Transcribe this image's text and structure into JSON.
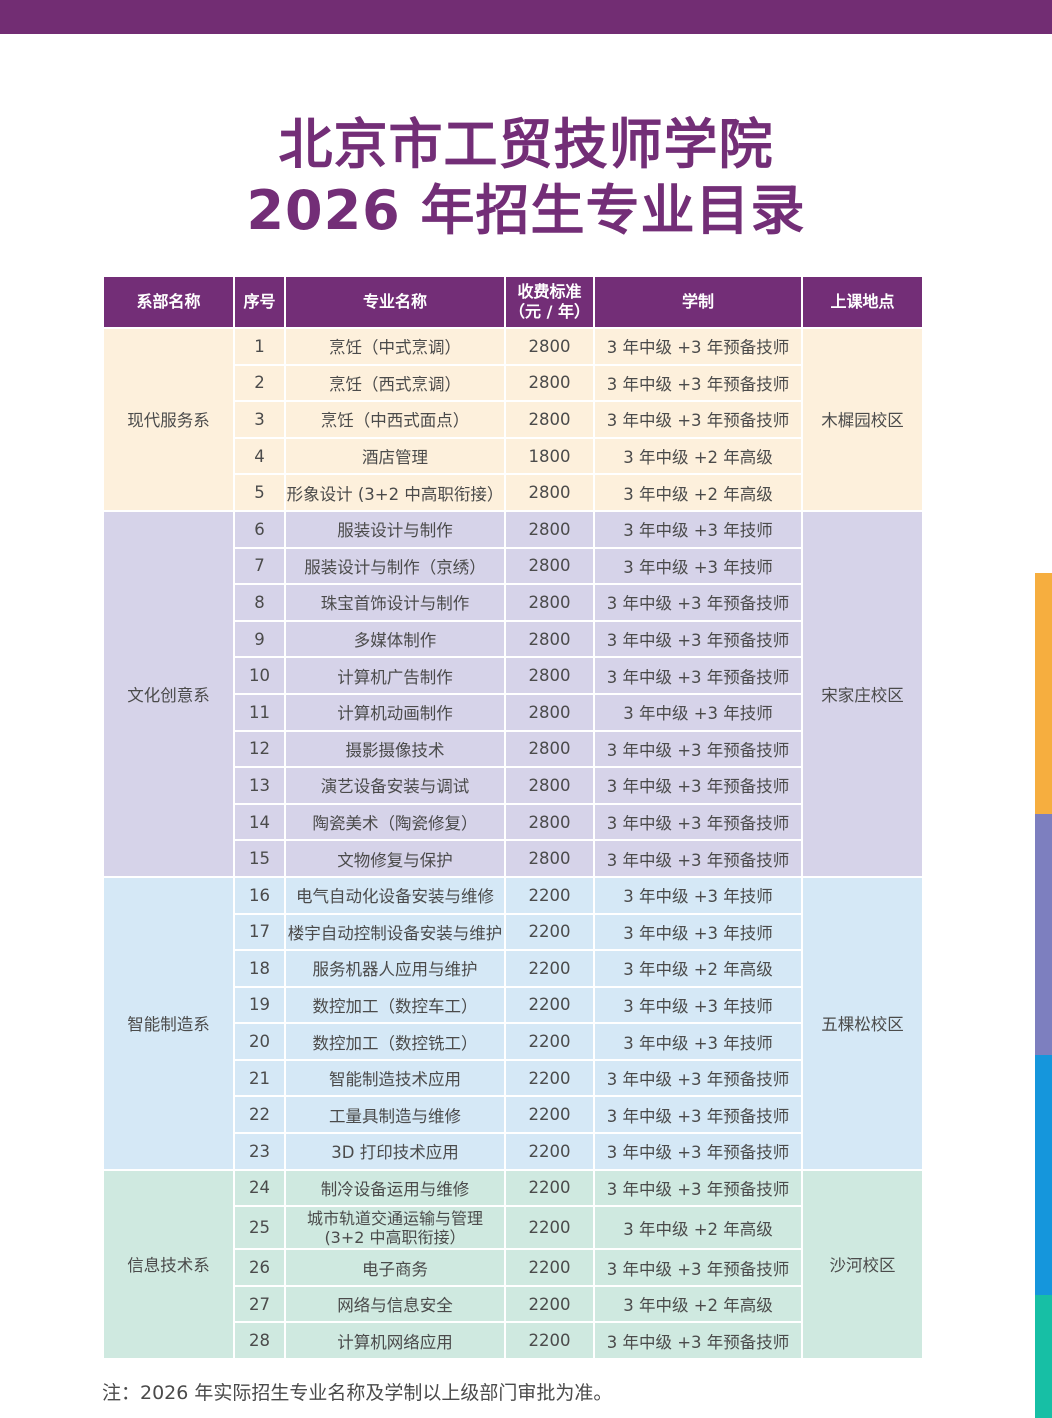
{
  "title": {
    "line1": "北京市工贸技师学院",
    "line2": "2026 年招生专业目录"
  },
  "table": {
    "headers": {
      "department": "系部名称",
      "no": "序号",
      "major": "专业名称",
      "fee_line1": "收费标准",
      "fee_line2": "（元 / 年）",
      "duration": "学制",
      "campus": "上课地点"
    },
    "sections": [
      {
        "department": "现代服务系",
        "campus": "木樨园校区",
        "color": "#fdf0dc",
        "rows": [
          {
            "no": "1",
            "major": "烹饪（中式烹调）",
            "fee": "2800",
            "duration": "3 年中级 +3 年预备技师"
          },
          {
            "no": "2",
            "major": "烹饪（西式烹调）",
            "fee": "2800",
            "duration": "3 年中级 +3 年预备技师"
          },
          {
            "no": "3",
            "major": "烹饪（中西式面点）",
            "fee": "2800",
            "duration": "3 年中级 +3 年预备技师"
          },
          {
            "no": "4",
            "major": "酒店管理",
            "fee": "1800",
            "duration": "3 年中级 +2 年高级"
          },
          {
            "no": "5",
            "major": "形象设计 (3+2 中高职衔接）",
            "fee": "2800",
            "duration": "3 年中级 +2 年高级"
          }
        ]
      },
      {
        "department": "文化创意系",
        "campus": "宋家庄校区",
        "color": "#d6d3e9",
        "rows": [
          {
            "no": "6",
            "major": "服装设计与制作",
            "fee": "2800",
            "duration": "3 年中级 +3 年技师"
          },
          {
            "no": "7",
            "major": "服装设计与制作（京绣）",
            "fee": "2800",
            "duration": "3 年中级 +3 年技师"
          },
          {
            "no": "8",
            "major": "珠宝首饰设计与制作",
            "fee": "2800",
            "duration": "3 年中级 +3 年预备技师"
          },
          {
            "no": "9",
            "major": "多媒体制作",
            "fee": "2800",
            "duration": "3 年中级 +3 年预备技师"
          },
          {
            "no": "10",
            "major": "计算机广告制作",
            "fee": "2800",
            "duration": "3 年中级 +3 年预备技师"
          },
          {
            "no": "11",
            "major": "计算机动画制作",
            "fee": "2800",
            "duration": "3 年中级 +3 年技师"
          },
          {
            "no": "12",
            "major": "摄影摄像技术",
            "fee": "2800",
            "duration": "3 年中级 +3 年预备技师"
          },
          {
            "no": "13",
            "major": "演艺设备安装与调试",
            "fee": "2800",
            "duration": "3 年中级 +3 年预备技师"
          },
          {
            "no": "14",
            "major": "陶瓷美术（陶瓷修复）",
            "fee": "2800",
            "duration": "3 年中级 +3 年预备技师"
          },
          {
            "no": "15",
            "major": "文物修复与保护",
            "fee": "2800",
            "duration": "3 年中级 +3 年预备技师"
          }
        ]
      },
      {
        "department": "智能制造系",
        "campus": "五棵松校区",
        "color": "#d5e8f6",
        "rows": [
          {
            "no": "16",
            "major": "电气自动化设备安装与维修",
            "fee": "2200",
            "duration": "3 年中级 +3 年技师"
          },
          {
            "no": "17",
            "major": "楼宇自动控制设备安装与维护",
            "fee": "2200",
            "duration": "3 年中级 +3 年技师"
          },
          {
            "no": "18",
            "major": "服务机器人应用与维护",
            "fee": "2200",
            "duration": "3 年中级 +2 年高级"
          },
          {
            "no": "19",
            "major": "数控加工（数控车工）",
            "fee": "2200",
            "duration": "3 年中级 +3 年技师"
          },
          {
            "no": "20",
            "major": "数控加工（数控铣工）",
            "fee": "2200",
            "duration": "3 年中级 +3 年技师"
          },
          {
            "no": "21",
            "major": "智能制造技术应用",
            "fee": "2200",
            "duration": "3 年中级 +3 年预备技师"
          },
          {
            "no": "22",
            "major": "工量具制造与维修",
            "fee": "2200",
            "duration": "3 年中级 +3 年预备技师"
          },
          {
            "no": "23",
            "major": "3D 打印技术应用",
            "fee": "2200",
            "duration": "3 年中级 +3 年预备技师"
          }
        ]
      },
      {
        "department": "信息技术系",
        "campus": "沙河校区",
        "color": "#cfe9e0",
        "rows": [
          {
            "no": "24",
            "major": "制冷设备运用与维修",
            "fee": "2200",
            "duration": "3 年中级 +3 年预备技师"
          },
          {
            "no": "25",
            "major": "城市轨道交通运输与管理",
            "major_line2": "(3+2 中高职衔接）",
            "fee": "2200",
            "duration": "3 年中级 +2 年高级"
          },
          {
            "no": "26",
            "major": "电子商务",
            "fee": "2200",
            "duration": "3 年中级 +3 年预备技师"
          },
          {
            "no": "27",
            "major": "网络与信息安全",
            "fee": "2200",
            "duration": "3 年中级 +2 年高级"
          },
          {
            "no": "28",
            "major": "计算机网络应用",
            "fee": "2200",
            "duration": "3 年中级 +3 年预备技师"
          }
        ]
      }
    ]
  },
  "footnote": "注：2026 年实际招生专业名称及学制以上级部门审批为准。",
  "colors": {
    "header_purple": "#732e77",
    "top_bar": "#722d73",
    "side_strips": [
      "#f6ae3f",
      "#7d7fbf",
      "#1596dc",
      "#17bfa5"
    ]
  }
}
